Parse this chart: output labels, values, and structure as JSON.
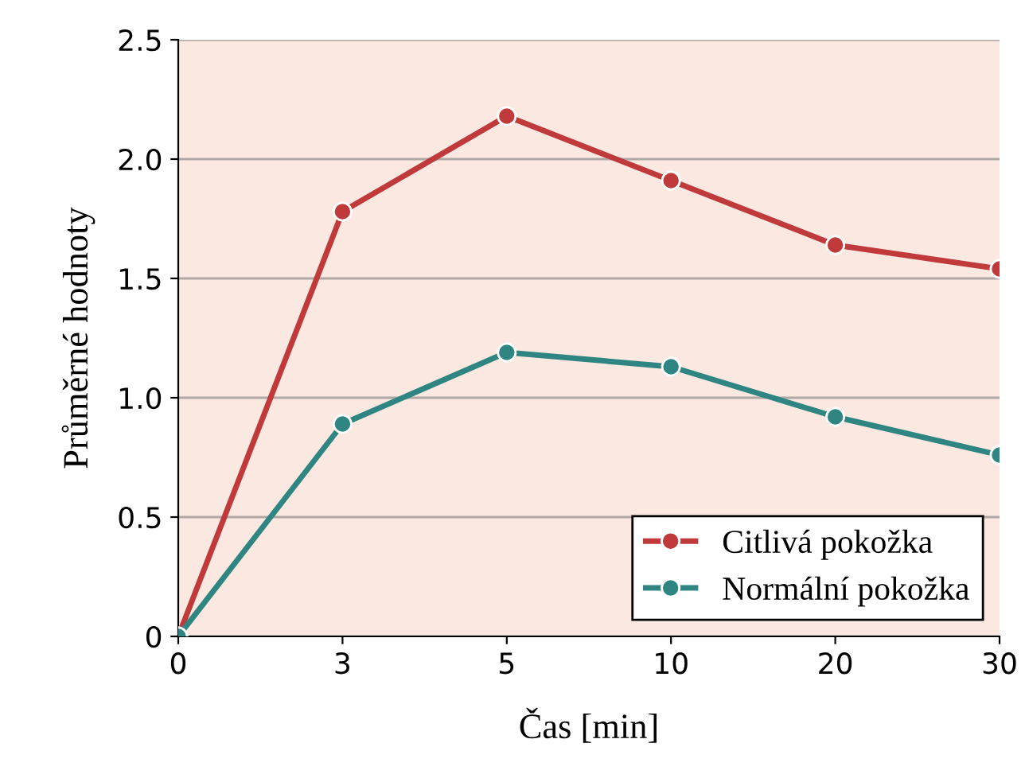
{
  "chart_data": {
    "type": "line",
    "xlabel": "Čas [min]",
    "ylabel": "Průměrné hodnoty",
    "categories": [
      "0",
      "3",
      "5",
      "10",
      "20",
      "30"
    ],
    "series": [
      {
        "name": "Citlivá pokožka",
        "color": "#c0393b",
        "values": [
          0,
          1.78,
          2.18,
          1.91,
          1.64,
          1.54
        ]
      },
      {
        "name": "Normální pokožka",
        "color": "#2e8582",
        "values": [
          0,
          0.89,
          1.19,
          1.13,
          0.92,
          0.76
        ]
      }
    ],
    "ylim": [
      0,
      2.5
    ],
    "yticks": [
      0,
      0.5,
      {
        "value": 1,
        "label": "1.0"
      },
      1.5,
      {
        "value": 2,
        "label": "2.0"
      },
      2.5
    ],
    "grid": "y",
    "legend": "bottom right",
    "marker": "circle",
    "line_style": "solid"
  }
}
